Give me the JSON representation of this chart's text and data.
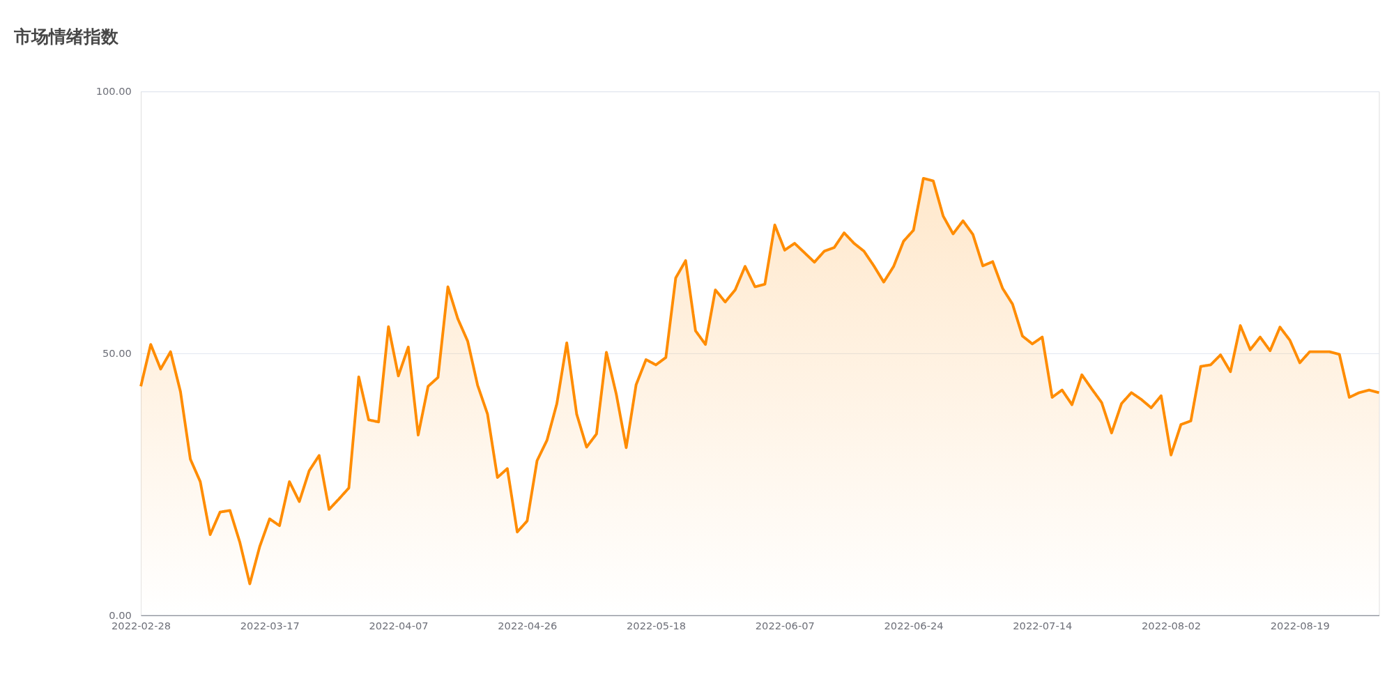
{
  "chart_data": {
    "type": "area",
    "title": "市场情绪指数",
    "categories": [
      "2022-02-28",
      null,
      null,
      null,
      null,
      null,
      null,
      null,
      null,
      null,
      null,
      null,
      null,
      "2022-03-17",
      null,
      null,
      null,
      null,
      null,
      null,
      null,
      null,
      null,
      null,
      null,
      null,
      "2022-04-07",
      null,
      null,
      null,
      null,
      null,
      null,
      null,
      null,
      null,
      null,
      null,
      null,
      "2022-04-26",
      null,
      null,
      null,
      null,
      null,
      null,
      null,
      null,
      null,
      null,
      null,
      null,
      "2022-05-18",
      null,
      null,
      null,
      null,
      null,
      null,
      null,
      null,
      null,
      null,
      null,
      null,
      "2022-06-07",
      null,
      null,
      null,
      null,
      null,
      null,
      null,
      null,
      null,
      null,
      null,
      null,
      "2022-06-24",
      null,
      null,
      null,
      null,
      null,
      null,
      null,
      null,
      null,
      null,
      null,
      null,
      "2022-07-14",
      null,
      null,
      null,
      null,
      null,
      null,
      null,
      null,
      null,
      null,
      null,
      null,
      "2022-08-02",
      null,
      null,
      null,
      null,
      null,
      null,
      null,
      null,
      null,
      null,
      null,
      null,
      "2022-08-19",
      null,
      null,
      null,
      null,
      null,
      null,
      null,
      null
    ],
    "series": [
      {
        "color": "#ff8c00",
        "values": [
          43.7,
          51.7,
          47.0,
          50.3,
          42.7,
          29.8,
          25.5,
          15.4,
          19.7,
          20.0,
          13.9,
          6.0,
          13.1,
          18.4,
          17.1,
          25.5,
          21.7,
          27.6,
          30.5,
          20.2,
          22.2,
          24.3,
          45.5,
          37.3,
          36.9,
          55.1,
          45.7,
          51.2,
          34.4,
          43.7,
          45.4,
          62.7,
          56.6,
          52.3,
          43.9,
          38.4,
          26.3,
          28.0,
          15.9,
          18.0,
          29.5,
          33.4,
          40.4,
          52.0,
          38.4,
          32.1,
          34.6,
          50.2,
          42.2,
          32.0,
          44.0,
          48.8,
          47.8,
          49.2,
          64.4,
          67.7,
          54.3,
          51.7,
          62.1,
          59.8,
          62.1,
          66.6,
          62.7,
          63.2,
          74.5,
          69.7,
          71.0,
          69.2,
          67.4,
          69.5,
          70.2,
          73.0,
          71.0,
          69.5,
          66.7,
          63.6,
          66.6,
          71.4,
          73.5,
          83.4,
          82.9,
          76.2,
          72.8,
          75.3,
          72.7,
          66.7,
          67.5,
          62.4,
          59.4,
          53.3,
          51.8,
          53.1,
          41.6,
          43.0,
          40.2,
          45.9,
          43.2,
          40.6,
          34.8,
          40.4,
          42.5,
          41.2,
          39.6,
          41.9,
          30.6,
          36.4,
          37.1,
          47.5,
          47.8,
          49.7,
          46.5,
          55.3,
          50.7,
          53.1,
          50.5,
          55.0,
          52.5,
          48.2,
          50.3,
          50.3,
          50.3,
          49.8,
          41.6,
          42.5,
          43.0,
          42.5
        ]
      }
    ],
    "ylim": [
      0,
      100
    ],
    "yticks": [
      {
        "value": 0,
        "label": "0.00"
      },
      {
        "value": 50,
        "label": "50.00"
      },
      {
        "value": 100,
        "label": "100.00"
      }
    ],
    "grid": "y",
    "legend": false,
    "marker": "none",
    "line_style": "solid"
  }
}
